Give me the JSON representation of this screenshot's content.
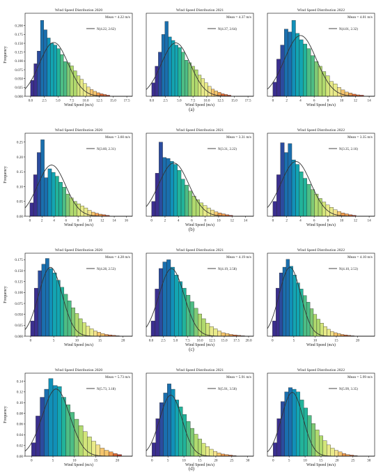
{
  "figure": {
    "row_labels": [
      "(a)",
      "(b)",
      "(c)",
      "(d)"
    ]
  },
  "chart_data": [
    {
      "type": "bar",
      "title": "Wind Speed Distribution 2020",
      "xlabel": "Wind Speed (m/s)",
      "ylabel": "Frequency",
      "mean_text": "Mean = 4.22 m/s",
      "legend": "N(4.22, 2.62)",
      "normal": {
        "mu": 4.22,
        "sigma": 2.62
      },
      "xlim": [
        -1,
        18.5
      ],
      "ylim": [
        0,
        0.235
      ],
      "xticks": [
        0,
        2.5,
        5,
        7.5,
        10,
        12.5,
        15,
        17.5
      ],
      "xticklabels": [
        "0.0",
        "2.5",
        "5.0",
        "7.5",
        "10.0",
        "12.5",
        "15.0",
        "17.5"
      ],
      "yticks": [
        0,
        0.025,
        0.05,
        0.075,
        0.1,
        0.125,
        0.15,
        0.175,
        0.2
      ],
      "yticklabels": [
        "0.000",
        "0.025",
        "0.050",
        "0.075",
        "0.100",
        "0.125",
        "0.150",
        "0.175",
        "0.200"
      ],
      "bin_start": 0,
      "bin_width": 0.6,
      "values": [
        0.045,
        0.092,
        0.128,
        0.215,
        0.188,
        0.165,
        0.15,
        0.145,
        0.135,
        0.118,
        0.098,
        0.095,
        0.086,
        0.072,
        0.058,
        0.048,
        0.036,
        0.026,
        0.019,
        0.014,
        0.01,
        0.007,
        0.005,
        0.003
      ]
    },
    {
      "type": "bar",
      "title": "Wind Speed Distribution 2021",
      "xlabel": "Wind Speed (m/s)",
      "ylabel": "",
      "mean_text": "Mean = 4.37 m/s",
      "legend": "N(4.37, 2.64)",
      "normal": {
        "mu": 4.37,
        "sigma": 2.64
      },
      "xlim": [
        -1,
        18.5
      ],
      "ylim": [
        0,
        0.235
      ],
      "xticks": [
        0,
        2.5,
        5,
        7.5,
        10,
        12.5,
        15,
        17.5
      ],
      "xticklabels": [
        "0.0",
        "2.5",
        "5.0",
        "7.5",
        "10.0",
        "12.5",
        "15.0",
        "17.5"
      ],
      "yticks": [],
      "yticklabels": [],
      "bin_start": 0,
      "bin_width": 0.6,
      "values": [
        0.038,
        0.085,
        0.125,
        0.175,
        0.212,
        0.168,
        0.158,
        0.145,
        0.138,
        0.125,
        0.102,
        0.095,
        0.085,
        0.075,
        0.06,
        0.05,
        0.038,
        0.028,
        0.02,
        0.015,
        0.011,
        0.007,
        0.005,
        0.003
      ]
    },
    {
      "type": "bar",
      "title": "Wind Speed Distribution 2022",
      "xlabel": "Wind Speed (m/s)",
      "ylabel": "",
      "mean_text": "Mean = 4.01 m/s",
      "legend": "N(4.01, 2.32)",
      "normal": {
        "mu": 4.01,
        "sigma": 2.32
      },
      "xlim": [
        -0.8,
        14.8
      ],
      "ylim": [
        0,
        0.235
      ],
      "xticks": [
        0,
        2,
        4,
        6,
        8,
        10,
        12,
        14
      ],
      "xticklabels": [
        "0",
        "2",
        "4",
        "6",
        "8",
        "10",
        "12",
        "14"
      ],
      "yticks": [],
      "yticklabels": [],
      "bin_start": 0,
      "bin_width": 0.55,
      "values": [
        0.04,
        0.105,
        0.145,
        0.19,
        0.182,
        0.215,
        0.178,
        0.16,
        0.148,
        0.135,
        0.115,
        0.098,
        0.085,
        0.07,
        0.058,
        0.042,
        0.035,
        0.025,
        0.018,
        0.012,
        0.009,
        0.006,
        0.004,
        0.003
      ]
    },
    {
      "type": "bar",
      "title": "Wind Speed Distribution 2020",
      "xlabel": "Wind Speed (m/s)",
      "ylabel": "Frequency",
      "mean_text": "Mean = 3.60 m/s",
      "legend": "N(3.60, 2.31)",
      "normal": {
        "mu": 3.6,
        "sigma": 2.31
      },
      "xlim": [
        -0.8,
        17
      ],
      "ylim": [
        0,
        0.28
      ],
      "xticks": [
        0,
        2,
        4,
        6,
        8,
        10,
        12,
        14,
        16
      ],
      "xticklabels": [
        "0",
        "2",
        "4",
        "6",
        "8",
        "10",
        "12",
        "14",
        "16"
      ],
      "yticks": [
        0,
        0.05,
        0.1,
        0.15,
        0.2,
        0.25
      ],
      "yticklabels": [
        "0.00",
        "0.05",
        "0.10",
        "0.15",
        "0.20",
        "0.25"
      ],
      "bin_start": 0,
      "bin_width": 0.6,
      "values": [
        0.045,
        0.14,
        0.215,
        0.258,
        0.13,
        0.16,
        0.148,
        0.135,
        0.115,
        0.098,
        0.075,
        0.062,
        0.05,
        0.042,
        0.035,
        0.028,
        0.02,
        0.014,
        0.01,
        0.007,
        0.005,
        0.003
      ]
    },
    {
      "type": "bar",
      "title": "Wind Speed Distribution 2021",
      "xlabel": "Wind Speed (m/s)",
      "ylabel": "",
      "mean_text": "Mean = 3.31 m/s",
      "legend": "N(3.31, 2.22)",
      "normal": {
        "mu": 3.31,
        "sigma": 2.22
      },
      "xlim": [
        -0.8,
        15.2
      ],
      "ylim": [
        0,
        0.28
      ],
      "xticks": [
        0,
        2,
        4,
        6,
        8,
        10,
        12,
        14
      ],
      "xticklabels": [
        "0",
        "2",
        "4",
        "6",
        "8",
        "10",
        "12",
        "14"
      ],
      "yticks": [],
      "yticklabels": [],
      "bin_start": 0,
      "bin_width": 0.55,
      "values": [
        0.05,
        0.145,
        0.25,
        0.198,
        0.195,
        0.185,
        0.175,
        0.155,
        0.125,
        0.105,
        0.085,
        0.068,
        0.056,
        0.045,
        0.036,
        0.028,
        0.021,
        0.015,
        0.011,
        0.008,
        0.005,
        0.003
      ]
    },
    {
      "type": "bar",
      "title": "Wind Speed Distribution 2022",
      "xlabel": "Wind Speed (m/s)",
      "ylabel": "",
      "mean_text": "Mean = 3.35 m/s",
      "legend": "N(3.35, 2.16)",
      "normal": {
        "mu": 3.35,
        "sigma": 2.16
      },
      "xlim": [
        -0.8,
        14.8
      ],
      "ylim": [
        0,
        0.28
      ],
      "xticks": [
        0,
        2,
        4,
        6,
        8,
        10,
        12,
        14
      ],
      "xticklabels": [
        "0",
        "2",
        "4",
        "6",
        "8",
        "10",
        "12",
        "14"
      ],
      "yticks": [],
      "yticklabels": [],
      "bin_start": 0,
      "bin_width": 0.55,
      "values": [
        0.05,
        0.14,
        0.248,
        0.215,
        0.245,
        0.19,
        0.175,
        0.15,
        0.128,
        0.108,
        0.09,
        0.075,
        0.06,
        0.048,
        0.038,
        0.03,
        0.022,
        0.016,
        0.011,
        0.008,
        0.005,
        0.003
      ]
    },
    {
      "type": "bar",
      "title": "Wind Speed Distribution 2020",
      "xlabel": "Wind Speed (m/s)",
      "ylabel": "Frequency",
      "mean_text": "Mean = 4.28 m/s",
      "legend": "N(4.28, 2.53)",
      "normal": {
        "mu": 4.28,
        "sigma": 2.53
      },
      "xlim": [
        -1.2,
        22
      ],
      "ylim": [
        0,
        0.19
      ],
      "xticks": [
        0,
        5,
        10,
        15,
        20
      ],
      "xticklabels": [
        "0",
        "5",
        "10",
        "15",
        "20"
      ],
      "yticks": [
        0,
        0.025,
        0.05,
        0.075,
        0.1,
        0.125,
        0.15,
        0.175
      ],
      "yticklabels": [
        "0.000",
        "0.025",
        "0.050",
        "0.075",
        "0.100",
        "0.125",
        "0.150",
        "0.175"
      ],
      "bin_start": 0,
      "bin_width": 0.8,
      "values": [
        0.035,
        0.11,
        0.15,
        0.165,
        0.178,
        0.155,
        0.145,
        0.128,
        0.112,
        0.096,
        0.081,
        0.065,
        0.052,
        0.04,
        0.031,
        0.023,
        0.017,
        0.012,
        0.009,
        0.006,
        0.004,
        0.003,
        0.002,
        0.001
      ]
    },
    {
      "type": "bar",
      "title": "Wind Speed Distribution 2021",
      "xlabel": "Wind Speed (m/s)",
      "ylabel": "",
      "mean_text": "Mean = 4.19 m/s",
      "legend": "N(4.19, 2.58)",
      "normal": {
        "mu": 4.19,
        "sigma": 2.58
      },
      "xlim": [
        -1,
        21
      ],
      "ylim": [
        0,
        0.19
      ],
      "xticks": [
        0,
        2.5,
        5,
        7.5,
        10,
        12.5,
        15,
        17.5,
        20
      ],
      "xticklabels": [
        "0.0",
        "2.5",
        "5.0",
        "7.5",
        "10.0",
        "12.5",
        "15.0",
        "17.5",
        "20.0"
      ],
      "yticks": [],
      "yticklabels": [],
      "bin_start": 0,
      "bin_width": 0.8,
      "values": [
        0.035,
        0.108,
        0.155,
        0.17,
        0.175,
        0.158,
        0.14,
        0.125,
        0.11,
        0.094,
        0.079,
        0.064,
        0.051,
        0.04,
        0.03,
        0.022,
        0.017,
        0.012,
        0.008,
        0.006,
        0.004,
        0.003,
        0.002,
        0.001
      ]
    },
    {
      "type": "bar",
      "title": "Wind Speed Distribution 2022",
      "xlabel": "Wind Speed (m/s)",
      "ylabel": "",
      "mean_text": "Mean = 4.10 m/s",
      "legend": "N(4.10, 2.53)",
      "normal": {
        "mu": 4.1,
        "sigma": 2.53
      },
      "xlim": [
        -1.2,
        24
      ],
      "ylim": [
        0,
        0.19
      ],
      "xticks": [
        0,
        5,
        10,
        15,
        20
      ],
      "xticklabels": [
        "0",
        "5",
        "10",
        "15",
        "20"
      ],
      "yticks": [],
      "yticklabels": [],
      "bin_start": 0,
      "bin_width": 0.8,
      "values": [
        0.035,
        0.11,
        0.145,
        0.158,
        0.176,
        0.16,
        0.14,
        0.122,
        0.108,
        0.093,
        0.078,
        0.063,
        0.05,
        0.039,
        0.03,
        0.022,
        0.016,
        0.011,
        0.008,
        0.006,
        0.004,
        0.003,
        0.002,
        0.001
      ]
    },
    {
      "type": "bar",
      "title": "Wind Speed Distribution 2020",
      "xlabel": "Wind Speed (m/s)",
      "ylabel": "Frequency",
      "mean_text": "Mean = 5.73 m/s",
      "legend": "N(5.73, 3.18)",
      "normal": {
        "mu": 5.73,
        "sigma": 3.18
      },
      "xlim": [
        -1.5,
        23.5
      ],
      "ylim": [
        0,
        0.155
      ],
      "xticks": [
        0,
        5,
        10,
        15,
        20
      ],
      "xticklabels": [
        "0",
        "5",
        "10",
        "15",
        "20"
      ],
      "yticks": [
        0,
        0.02,
        0.04,
        0.06,
        0.08,
        0.1,
        0.12,
        0.14
      ],
      "yticklabels": [
        "0.00",
        "0.02",
        "0.04",
        "0.06",
        "0.08",
        "0.10",
        "0.12",
        "0.14"
      ],
      "bin_start": 0,
      "bin_width": 1.0,
      "values": [
        0.025,
        0.075,
        0.11,
        0.125,
        0.145,
        0.132,
        0.13,
        0.11,
        0.096,
        0.082,
        0.069,
        0.057,
        0.046,
        0.036,
        0.028,
        0.021,
        0.015,
        0.011,
        0.008,
        0.005,
        0.003
      ]
    },
    {
      "type": "bar",
      "title": "Wind Speed Distribution 2021",
      "xlabel": "Wind Speed (m/s)",
      "ylabel": "",
      "mean_text": "Mean = 5.91 m/s",
      "legend": "N(5.91, 3.50)",
      "normal": {
        "mu": 5.91,
        "sigma": 3.5
      },
      "xlim": [
        -1.8,
        31.8
      ],
      "ylim": [
        0,
        0.155
      ],
      "xticks": [
        0,
        5,
        10,
        15,
        20,
        25,
        30
      ],
      "xticklabels": [
        "0",
        "5",
        "10",
        "15",
        "20",
        "25",
        "30"
      ],
      "yticks": [],
      "yticklabels": [],
      "bin_start": 0,
      "bin_width": 1.2,
      "values": [
        0.025,
        0.07,
        0.1,
        0.118,
        0.135,
        0.125,
        0.105,
        0.092,
        0.078,
        0.065,
        0.052,
        0.041,
        0.032,
        0.024,
        0.018,
        0.013,
        0.009,
        0.006,
        0.004,
        0.003,
        0.002,
        0.001
      ]
    },
    {
      "type": "bar",
      "title": "Wind Speed Distribution 2022",
      "xlabel": "Wind Speed (m/s)",
      "ylabel": "",
      "mean_text": "Mean = 5.99 m/s",
      "legend": "N(5.99, 3.35)",
      "normal": {
        "mu": 5.99,
        "sigma": 3.35
      },
      "xlim": [
        -1.8,
        31.8
      ],
      "ylim": [
        0,
        0.155
      ],
      "xticks": [
        0,
        5,
        10,
        15,
        20,
        25,
        30
      ],
      "xticklabels": [
        "0",
        "5",
        "10",
        "15",
        "20",
        "25",
        "30"
      ],
      "yticks": [],
      "yticklabels": [],
      "bin_start": 0,
      "bin_width": 1.2,
      "values": [
        0.025,
        0.07,
        0.102,
        0.12,
        0.128,
        0.125,
        0.12,
        0.105,
        0.09,
        0.076,
        0.061,
        0.049,
        0.038,
        0.029,
        0.021,
        0.015,
        0.011,
        0.008,
        0.005,
        0.003,
        0.002,
        0.001
      ]
    }
  ],
  "colors": {
    "colormap": [
      "#3b2f8f",
      "#2b4c9e",
      "#1a6fae",
      "#1190b8",
      "#13a5b2",
      "#22b39a",
      "#4dbd85",
      "#80c975",
      "#b0d96e",
      "#d2e57a",
      "#e9eb8a",
      "#f3e28b",
      "#f5c56d",
      "#ee9a4d",
      "#df6a35",
      "#c43c2a"
    ],
    "curve": "#333333",
    "axis": "#000000",
    "text": "#222222"
  }
}
